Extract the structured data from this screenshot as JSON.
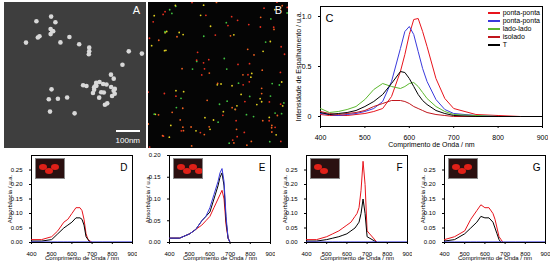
{
  "images": [
    {
      "title": "A",
      "scale_bar": "100nm"
    },
    {
      "title": "B"
    }
  ],
  "chart_data": [
    {
      "type": "line",
      "title": "C",
      "xlabel": "Comprimento de Onda / nm",
      "ylabel": "Intensidade de Espalhamento / u.a.",
      "x": [
        400,
        420,
        440,
        460,
        480,
        500,
        520,
        540,
        560,
        580,
        590,
        600,
        610,
        620,
        630,
        640,
        660,
        680,
        700,
        750,
        800,
        850,
        900
      ],
      "xlim": [
        400,
        900
      ],
      "xticks": [
        400,
        500,
        600,
        700,
        800,
        900
      ],
      "ylim": [
        -0.1,
        1.1
      ],
      "yticks": [
        0,
        0.5,
        {
          "value": 1,
          "label": "1.0"
        }
      ],
      "legend": "top-right",
      "series": [
        {
          "name": "ponta-ponta",
          "color": "#e8141c",
          "values": [
            0.02,
            0.01,
            0.01,
            0.01,
            0.02,
            0.03,
            0.05,
            0.08,
            0.2,
            0.45,
            0.62,
            0.82,
            0.97,
            0.98,
            0.85,
            0.7,
            0.38,
            0.18,
            0.08,
            0.02,
            0.01,
            0,
            0
          ]
        },
        {
          "name": "ponta-ponta",
          "color": "#3a3adc",
          "values": [
            0.03,
            0.02,
            0.01,
            0.02,
            0.03,
            0.05,
            0.08,
            0.15,
            0.35,
            0.68,
            0.85,
            0.9,
            0.82,
            0.65,
            0.48,
            0.35,
            0.17,
            0.07,
            0.03,
            0.01,
            0,
            0,
            0
          ]
        },
        {
          "name": "lado-lado",
          "color": "#5cb82e",
          "values": [
            0.08,
            0.04,
            0.05,
            0.07,
            0.1,
            0.17,
            0.27,
            0.33,
            0.3,
            0.28,
            0.3,
            0.33,
            0.34,
            0.3,
            0.24,
            0.18,
            0.1,
            0.05,
            0.02,
            0.01,
            0,
            0,
            0
          ]
        },
        {
          "name": "isolado",
          "color": "#c0161c",
          "values": [
            0.05,
            0.03,
            0.02,
            0.03,
            0.04,
            0.06,
            0.1,
            0.13,
            0.16,
            0.16,
            0.15,
            0.13,
            0.1,
            0.08,
            0.06,
            0.04,
            0.02,
            0.01,
            0,
            0,
            0,
            0,
            0
          ]
        },
        {
          "name": "T",
          "color": "#000000",
          "values": [
            0.04,
            0.02,
            0.03,
            0.04,
            0.06,
            0.1,
            0.15,
            0.22,
            0.33,
            0.45,
            0.44,
            0.38,
            0.3,
            0.22,
            0.16,
            0.12,
            0.06,
            0.03,
            0.01,
            0,
            0,
            0,
            0
          ]
        }
      ]
    },
    {
      "type": "line",
      "title": "D",
      "xlabel": "Comprimento de Onda / nm",
      "ylabel": "Absorbância / u.a.",
      "x": [
        400,
        450,
        500,
        530,
        560,
        580,
        600,
        620,
        640,
        650,
        660,
        670,
        680,
        690,
        700,
        750,
        800,
        900
      ],
      "xlim": [
        400,
        900
      ],
      "xticks": [
        400,
        500,
        600,
        700,
        800,
        900
      ],
      "ylim": [
        0,
        0.3
      ],
      "yticks": [
        {
          "value": 0,
          "label": "0.00"
        },
        {
          "value": 0.05,
          "label": "0.05"
        },
        {
          "value": 0.1,
          "label": "0.10"
        },
        {
          "value": 0.15,
          "label": "0.15"
        },
        {
          "value": 0.2,
          "label": "0.20"
        },
        {
          "value": 0.25,
          "label": "0.25"
        }
      ],
      "series": [
        {
          "color": "#e8141c",
          "values": [
            0.01,
            0.01,
            0.02,
            0.04,
            0.07,
            0.08,
            0.1,
            0.12,
            0.12,
            0.11,
            0.08,
            0.03,
            0.01,
            0.005,
            0,
            0,
            0,
            0
          ]
        },
        {
          "color": "#000000",
          "values": [
            0.005,
            0.005,
            0.01,
            0.03,
            0.05,
            0.06,
            0.07,
            0.085,
            0.085,
            0.08,
            0.06,
            0.02,
            0.01,
            0,
            0,
            0,
            0,
            0
          ]
        },
        {
          "color": "#3a3adc",
          "values": [
            0.002,
            0.002,
            0.002,
            0.002,
            0.002,
            0.002,
            0.002,
            0.002,
            0.002,
            0.002,
            0.002,
            0.002,
            0.002,
            0.002,
            0.002,
            0.002,
            0.002,
            0.002
          ]
        }
      ]
    },
    {
      "type": "line",
      "title": "E",
      "xlabel": "Comprimento de Onda / nm",
      "ylabel": "Absorbância / u.a.",
      "x": [
        400,
        450,
        500,
        530,
        560,
        580,
        600,
        620,
        640,
        650,
        660,
        670,
        680,
        690,
        700,
        750,
        800,
        900
      ],
      "xlim": [
        400,
        900
      ],
      "xticks": [
        400,
        500,
        600,
        700,
        800,
        900
      ],
      "ylim": [
        0,
        0.2
      ],
      "yticks": [
        {
          "value": 0,
          "label": "0.00"
        },
        {
          "value": 0.05,
          "label": "0.05"
        },
        {
          "value": 0.1,
          "label": "0.10"
        },
        {
          "value": 0.15,
          "label": "0.15"
        },
        {
          "value": 0.2,
          "label": "0.20"
        }
      ],
      "series": [
        {
          "color": "#e8141c",
          "values": [
            0.01,
            0.01,
            0.02,
            0.03,
            0.04,
            0.05,
            0.06,
            0.08,
            0.1,
            0.11,
            0.12,
            0.1,
            0.04,
            0.01,
            0,
            0,
            0,
            0
          ]
        },
        {
          "color": "#000000",
          "values": [
            0.01,
            0.01,
            0.02,
            0.03,
            0.05,
            0.06,
            0.07,
            0.1,
            0.13,
            0.15,
            0.16,
            0.13,
            0.05,
            0.01,
            0,
            0,
            0,
            0
          ]
        },
        {
          "color": "#3a3adc",
          "values": [
            0.01,
            0.01,
            0.02,
            0.03,
            0.05,
            0.06,
            0.08,
            0.11,
            0.14,
            0.16,
            0.17,
            0.14,
            0.06,
            0.01,
            0,
            0,
            0,
            0
          ]
        }
      ]
    },
    {
      "type": "line",
      "title": "F",
      "xlabel": "Comprimento de Onda / nm",
      "ylabel": "Absorbância / u.a.",
      "x": [
        400,
        450,
        500,
        530,
        560,
        580,
        600,
        620,
        640,
        650,
        660,
        670,
        680,
        690,
        700,
        750,
        800,
        900
      ],
      "xlim": [
        400,
        900
      ],
      "xticks": [
        400,
        500,
        600,
        700,
        800,
        900
      ],
      "ylim": [
        0,
        0.3
      ],
      "yticks": [
        {
          "value": 0,
          "label": "0.00"
        },
        {
          "value": 0.05,
          "label": "0.05"
        },
        {
          "value": 0.1,
          "label": "0.10"
        },
        {
          "value": 0.15,
          "label": "0.15"
        },
        {
          "value": 0.2,
          "label": "0.20"
        },
        {
          "value": 0.25,
          "label": "0.25"
        }
      ],
      "series": [
        {
          "color": "#e8141c",
          "values": [
            0.01,
            0.01,
            0.02,
            0.03,
            0.04,
            0.05,
            0.06,
            0.07,
            0.09,
            0.1,
            0.12,
            0.18,
            0.28,
            0.2,
            0.04,
            0,
            0,
            0
          ]
        },
        {
          "color": "#000000",
          "values": [
            0.005,
            0.005,
            0.01,
            0.015,
            0.02,
            0.025,
            0.03,
            0.04,
            0.05,
            0.06,
            0.07,
            0.1,
            0.15,
            0.1,
            0.02,
            0,
            0,
            0
          ]
        },
        {
          "color": "#3a3adc",
          "values": [
            0.002,
            0.002,
            0.002,
            0.002,
            0.002,
            0.002,
            0.002,
            0.002,
            0.002,
            0.002,
            0.002,
            0.002,
            0.002,
            0.002,
            0.002,
            0.002,
            0.002,
            0.002
          ]
        }
      ]
    },
    {
      "type": "line",
      "title": "G",
      "xlabel": "Comprimento de Onda / nm",
      "ylabel": "Absorbância / u.a.",
      "x": [
        400,
        450,
        500,
        530,
        560,
        580,
        600,
        620,
        640,
        650,
        660,
        670,
        680,
        690,
        700,
        750,
        800,
        900
      ],
      "xlim": [
        400,
        900
      ],
      "xticks": [
        400,
        500,
        600,
        700,
        800,
        900
      ],
      "ylim": [
        0,
        0.3
      ],
      "yticks": [
        {
          "value": 0,
          "label": "0.00"
        },
        {
          "value": 0.05,
          "label": "0.05"
        },
        {
          "value": 0.1,
          "label": "0.10"
        },
        {
          "value": 0.15,
          "label": "0.15"
        },
        {
          "value": 0.2,
          "label": "0.20"
        },
        {
          "value": 0.25,
          "label": "0.25"
        }
      ],
      "series": [
        {
          "color": "#e8141c",
          "values": [
            0.01,
            0.02,
            0.04,
            0.08,
            0.11,
            0.13,
            0.12,
            0.12,
            0.1,
            0.08,
            0.05,
            0.02,
            0.01,
            0,
            0,
            0,
            0,
            0
          ]
        },
        {
          "color": "#000000",
          "values": [
            0.005,
            0.01,
            0.03,
            0.05,
            0.07,
            0.09,
            0.085,
            0.085,
            0.07,
            0.05,
            0.03,
            0.01,
            0,
            0,
            0,
            0,
            0,
            0
          ]
        },
        {
          "color": "#3a3adc",
          "values": [
            0.002,
            0.002,
            0.002,
            0.002,
            0.002,
            0.002,
            0.002,
            0.002,
            0.002,
            0.002,
            0.002,
            0.002,
            0.002,
            0.002,
            0.002,
            0.002,
            0.002,
            0.002
          ]
        }
      ]
    }
  ]
}
